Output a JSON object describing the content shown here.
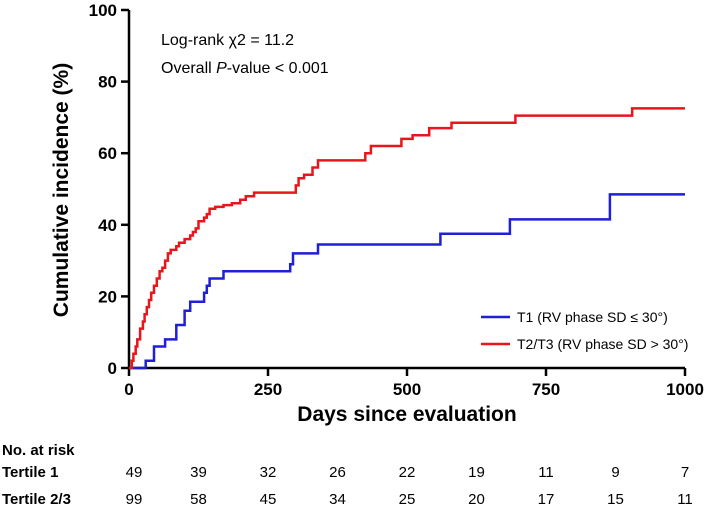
{
  "chart_data": {
    "type": "line",
    "subtype": "kaplan-meier-cumulative-incidence",
    "title": "",
    "xlabel": "Days since evaluation",
    "ylabel": "Cumulative incidence (%)",
    "xlim": [
      0,
      1000
    ],
    "ylim": [
      0,
      100
    ],
    "xticks": [
      0,
      250,
      500,
      750,
      1000
    ],
    "yticks": [
      0,
      20,
      40,
      60,
      80,
      100
    ],
    "grid": false,
    "legend_position": "bottom-right",
    "annotations": {
      "line1": "Log-rank χ2 = 11.2",
      "line2_prefix": "Overall ",
      "line2_italic": "P",
      "line2_suffix": "-value < 0.001"
    },
    "series": [
      {
        "name": "T1 (RV phase SD ≤ 30°)",
        "color": "#1f1fd6",
        "steps": [
          [
            0,
            0
          ],
          [
            30,
            2
          ],
          [
            45,
            6
          ],
          [
            65,
            8
          ],
          [
            85,
            12
          ],
          [
            100,
            16
          ],
          [
            110,
            18.5
          ],
          [
            135,
            21
          ],
          [
            140,
            23
          ],
          [
            145,
            25
          ],
          [
            170,
            27
          ],
          [
            290,
            29
          ],
          [
            295,
            32
          ],
          [
            340,
            34.5
          ],
          [
            560,
            37.5
          ],
          [
            685,
            41.5
          ],
          [
            865,
            48.5
          ],
          [
            1000,
            48.5
          ]
        ]
      },
      {
        "name": "T2/T3 (RV phase SD > 30°)",
        "color": "#e8161c",
        "steps": [
          [
            0,
            0
          ],
          [
            5,
            2
          ],
          [
            8,
            4
          ],
          [
            12,
            6
          ],
          [
            15,
            8
          ],
          [
            20,
            11
          ],
          [
            25,
            13
          ],
          [
            28,
            15
          ],
          [
            32,
            17
          ],
          [
            36,
            19
          ],
          [
            40,
            21
          ],
          [
            45,
            23
          ],
          [
            50,
            25
          ],
          [
            55,
            27
          ],
          [
            60,
            28
          ],
          [
            65,
            30
          ],
          [
            70,
            32
          ],
          [
            75,
            33
          ],
          [
            85,
            34
          ],
          [
            90,
            35
          ],
          [
            100,
            36
          ],
          [
            110,
            37
          ],
          [
            115,
            38
          ],
          [
            120,
            39
          ],
          [
            125,
            41
          ],
          [
            135,
            42
          ],
          [
            140,
            43
          ],
          [
            145,
            44.5
          ],
          [
            155,
            45
          ],
          [
            170,
            45.5
          ],
          [
            185,
            46
          ],
          [
            200,
            47
          ],
          [
            210,
            48
          ],
          [
            225,
            49
          ],
          [
            300,
            51
          ],
          [
            305,
            53
          ],
          [
            315,
            54
          ],
          [
            330,
            56
          ],
          [
            340,
            58
          ],
          [
            425,
            60
          ],
          [
            435,
            62
          ],
          [
            490,
            64
          ],
          [
            510,
            65
          ],
          [
            540,
            67
          ],
          [
            580,
            68.5
          ],
          [
            695,
            70.5
          ],
          [
            905,
            72.5
          ],
          [
            1000,
            72.5
          ]
        ]
      }
    ],
    "risk_table": {
      "title": "No. at risk",
      "timepoints": [
        0,
        125,
        250,
        375,
        500,
        625,
        750,
        875,
        1000
      ],
      "rows": [
        {
          "label": "Tertile 1",
          "values": [
            "49",
            "39",
            "32",
            "26",
            "22",
            "19",
            "11",
            "9",
            "7"
          ]
        },
        {
          "label": "Tertile 2/3",
          "values": [
            "99",
            "58",
            "45",
            "34",
            "25",
            "20",
            "17",
            "15",
            "11"
          ]
        }
      ]
    }
  }
}
